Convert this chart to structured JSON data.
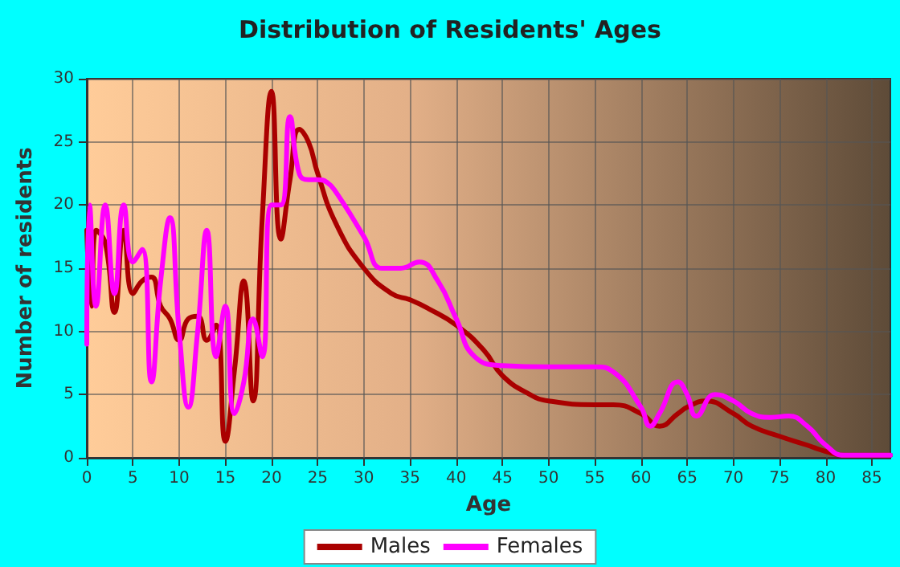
{
  "chart_data": {
    "type": "line",
    "title": "Distribution of Residents' Ages",
    "xlabel": "Age",
    "ylabel": "Number of residents",
    "xlim": [
      0,
      87
    ],
    "xticks": [
      0,
      5,
      10,
      15,
      20,
      25,
      30,
      35,
      40,
      45,
      50,
      55,
      60,
      65,
      70,
      75,
      80,
      85
    ],
    "ylim": [
      0,
      30
    ],
    "yticks": [
      0,
      5,
      10,
      15,
      20,
      25,
      30
    ],
    "grid": true,
    "legend": "bottom",
    "marker": "none",
    "series": [
      {
        "name": "Males",
        "color": "#aa0000",
        "x": [
          0,
          0.5,
          1,
          2,
          3,
          4,
          5,
          6,
          7,
          8,
          9,
          10,
          11,
          12,
          13,
          14,
          15,
          16,
          17,
          18,
          19,
          20,
          21,
          22,
          23,
          24,
          25,
          27,
          30,
          33,
          35,
          37,
          40,
          43,
          45,
          48,
          50,
          55,
          57,
          60,
          62,
          64,
          65,
          67,
          70,
          72,
          75,
          78,
          80,
          82,
          87
        ],
        "values": [
          18,
          12,
          18,
          17,
          11.5,
          18,
          13,
          14,
          14.3,
          12,
          11,
          9.3,
          11,
          11.2,
          9.3,
          10.5,
          1.3,
          7,
          14,
          4.5,
          19,
          29,
          17.3,
          22,
          26,
          25,
          22.5,
          18.5,
          15,
          13,
          12.5,
          11.8,
          10.5,
          8.5,
          6.5,
          5,
          4.5,
          4.2,
          4.2,
          3.5,
          2.5,
          3.5,
          4,
          4.5,
          3.5,
          2.5,
          1.7,
          1,
          0.5,
          0.2,
          0.2
        ]
      },
      {
        "name": "Females",
        "color": "#ff00ff",
        "x": [
          0,
          0.3,
          1,
          2,
          3,
          4,
          5,
          6,
          7,
          8,
          9,
          10,
          11,
          12,
          13,
          14,
          15,
          16,
          17,
          18,
          19,
          20,
          21,
          22,
          23,
          24,
          25,
          26,
          27,
          30,
          32,
          34,
          36,
          38,
          40,
          42,
          45,
          50,
          55,
          57,
          60,
          61,
          62,
          64,
          65,
          66,
          68,
          70,
          72,
          74,
          76,
          78,
          80,
          82,
          87
        ],
        "values": [
          9,
          20,
          12,
          20,
          13,
          20,
          15.5,
          16.5,
          6,
          14,
          19,
          10,
          4,
          10,
          18,
          8,
          12,
          3.5,
          6,
          11,
          8,
          20,
          20,
          27,
          22.5,
          22,
          22,
          21.8,
          21,
          17.5,
          15,
          15,
          15.5,
          14,
          11,
          8,
          7.3,
          7.2,
          7.2,
          6.8,
          4,
          2.5,
          3.5,
          6,
          5,
          3.3,
          5,
          4.5,
          3.5,
          3.2,
          3.3,
          2.5,
          1,
          0.2,
          0.2
        ]
      }
    ]
  }
}
